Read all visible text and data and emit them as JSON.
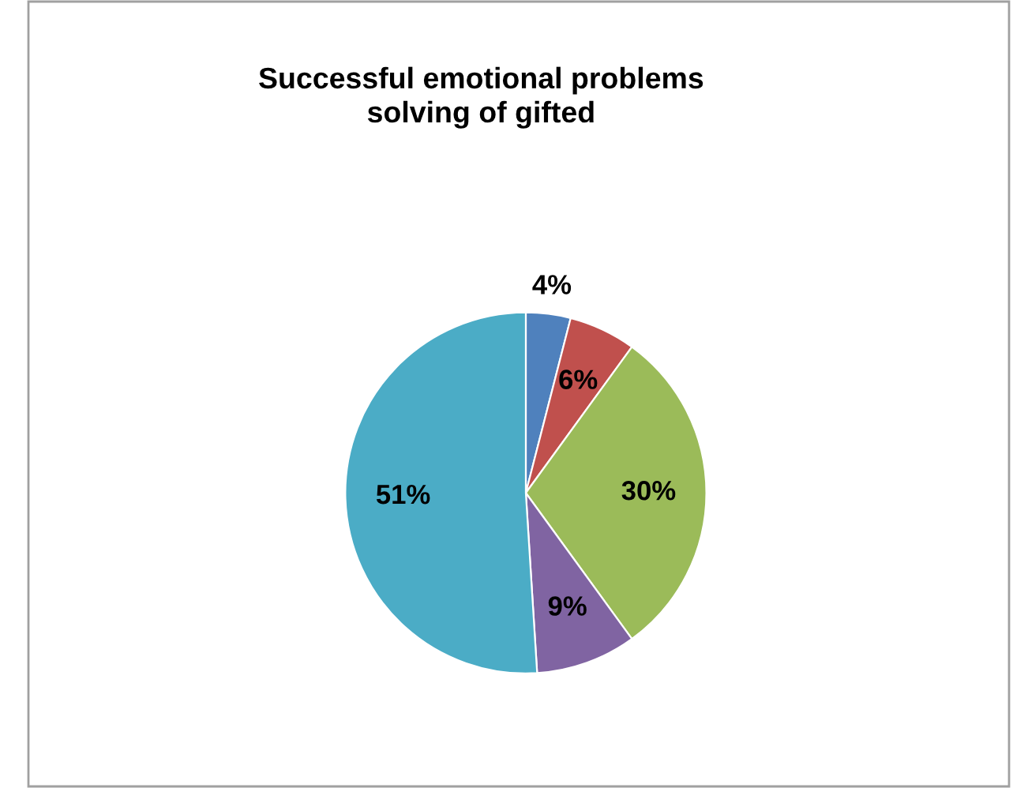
{
  "chart_data": {
    "type": "pie",
    "title": "Successful emotional problems\nsolving of gifted",
    "categories": [
      null,
      null,
      null,
      null,
      null
    ],
    "values": [
      4,
      6,
      30,
      9,
      51
    ],
    "value_labels": [
      "4%",
      "6%",
      "30%",
      "9%",
      "51%"
    ],
    "colors": [
      "#4f81bd",
      "#c0504d",
      "#9bbb59",
      "#8064a2",
      "#4bacc6"
    ],
    "legend": false
  }
}
